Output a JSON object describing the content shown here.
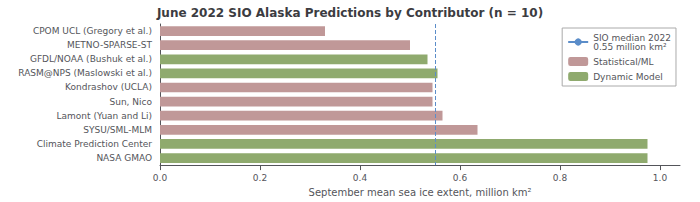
{
  "chart_data": {
    "type": "bar",
    "orientation": "horizontal",
    "title": "June 2022 SIO Alaska Predictions by Contributor (n = 10)",
    "xlabel": "September mean sea ice extent, million km²",
    "categories": [
      "CPOM UCL (Gregory et al.)",
      "METNO-SPARSE-ST",
      "GFDL/NOAA (Bushuk et al.)",
      "RASM@NPS (Maslowski et al.)",
      "Kondrashov (UCLA)",
      "Sun, Nico",
      "Lamont (Yuan and Li)",
      "SYSU/SML-MLM",
      "Climate Prediction Center",
      "NASA GMAO"
    ],
    "values": [
      0.33,
      0.5,
      0.535,
      0.555,
      0.545,
      0.545,
      0.565,
      0.635,
      0.975,
      0.975
    ],
    "colors": [
      "#c09898",
      "#c09898",
      "#8faa6e",
      "#8faa6e",
      "#c09898",
      "#c09898",
      "#c09898",
      "#c09898",
      "#8faa6e",
      "#8faa6e"
    ],
    "xlim": [
      0.0,
      1.04
    ],
    "xticks": [
      {
        "value": 0,
        "label": "0.0"
      },
      0.2,
      0.4,
      0.6,
      0.8,
      {
        "value": 1,
        "label": "1.0"
      }
    ],
    "grid": false,
    "reference_line": {
      "value": 0.55,
      "label": "SIO median 2022\n0.55 million km²",
      "color": "#5b8dc9",
      "line_style": "dashed"
    },
    "legend_entries": [
      {
        "name": "Statistical/ML",
        "color": "#c09898"
      },
      {
        "name": "Dynamic Model",
        "color": "#8faa6e"
      }
    ],
    "legend": "upper right"
  }
}
